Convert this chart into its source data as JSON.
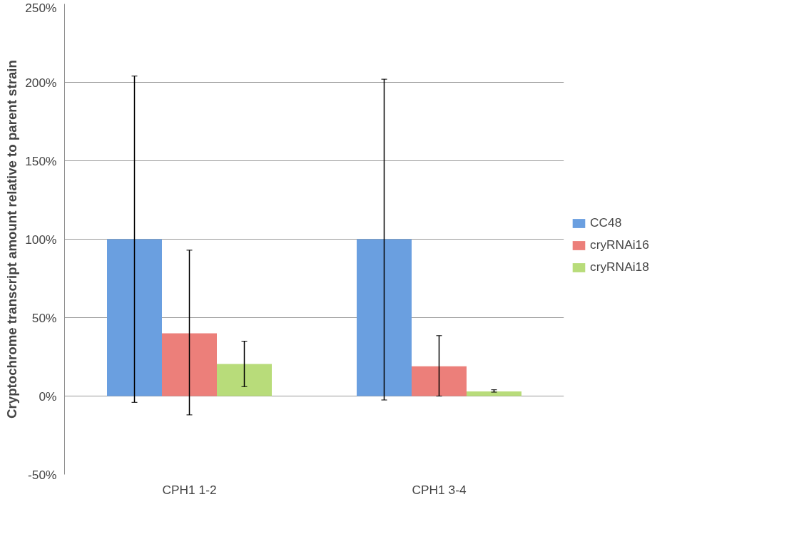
{
  "chart_data": {
    "type": "bar",
    "ylabel": "Cryptochrome transcript amount relative to parent strain",
    "categories": [
      "CPH1 1-2",
      "CPH1 3-4"
    ],
    "series": [
      {
        "name": "CC48",
        "color": "#6a9fe0",
        "values": [
          100,
          100
        ],
        "errors": [
          [
            -4,
            204
          ],
          [
            -2.5,
            202
          ]
        ]
      },
      {
        "name": "cryRNAi16",
        "color": "#ec7f7a",
        "values": [
          40,
          19
        ],
        "errors": [
          [
            -12,
            93
          ],
          [
            0,
            38.5
          ]
        ]
      },
      {
        "name": "cryRNAi18",
        "color": "#b8dc7a",
        "values": [
          20.5,
          3
        ],
        "errors": [
          [
            6,
            35
          ],
          [
            2.5,
            4
          ]
        ]
      }
    ],
    "ylim": [
      -50,
      250
    ],
    "yticks": [
      {
        "value": -50,
        "label": "-50%"
      },
      {
        "value": 0,
        "label": "0%"
      },
      {
        "value": 50,
        "label": "50%"
      },
      {
        "value": 100,
        "label": "100%"
      },
      {
        "value": 150,
        "label": "150%"
      },
      {
        "value": 200,
        "label": "200%"
      },
      {
        "value": 250,
        "label": "250%"
      }
    ],
    "grid": "y",
    "legend": "right"
  }
}
